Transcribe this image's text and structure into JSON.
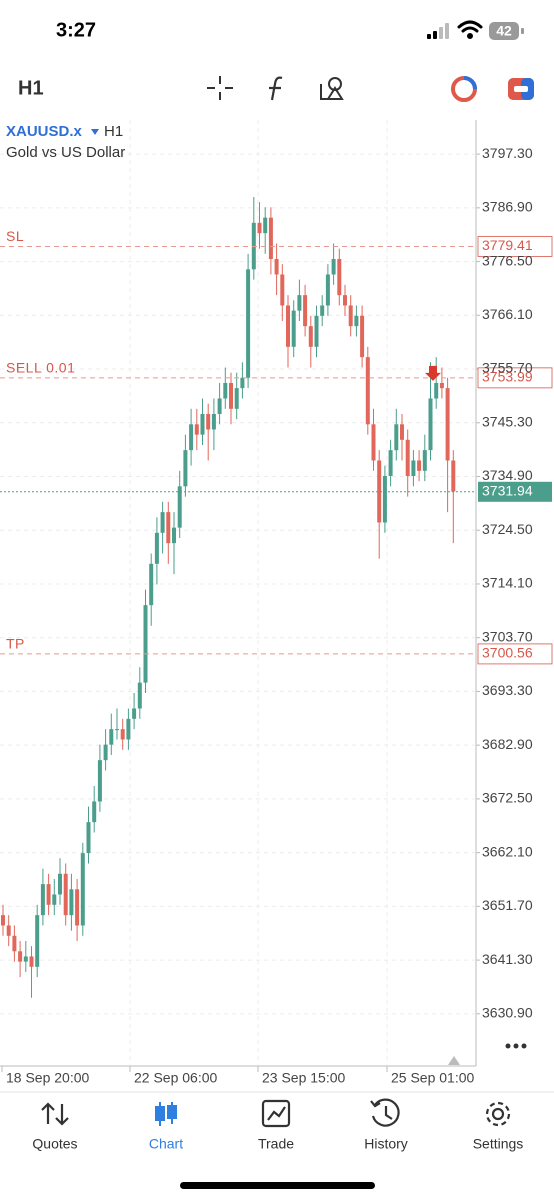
{
  "status_bar": {
    "time": "3:27",
    "battery": "42"
  },
  "toolbar": {
    "timeframe": "H1"
  },
  "chart": {
    "type": "candlestick",
    "symbol": "XAUUSD.x",
    "timeframe": "H1",
    "description": "Gold vs US Dollar",
    "up_color": "#4a9e8b",
    "down_color": "#e0675a",
    "ylim": [
      3620.8,
      3803.9
    ],
    "yticks": [
      {
        "value": 3797.3,
        "label": "3797.30"
      },
      {
        "value": 3786.9,
        "label": "3786.90"
      },
      {
        "value": 3776.5,
        "label": "3776.50"
      },
      {
        "value": 3766.1,
        "label": "3766.10"
      },
      {
        "value": 3755.7,
        "label": "3755.70"
      },
      {
        "value": 3745.3,
        "label": "3745.30"
      },
      {
        "value": 3734.9,
        "label": "3734.90"
      },
      {
        "value": 3724.5,
        "label": "3724.50"
      },
      {
        "value": 3714.1,
        "label": "3714.10"
      },
      {
        "value": 3703.7,
        "label": "3703.70"
      },
      {
        "value": 3693.3,
        "label": "3693.30"
      },
      {
        "value": 3682.9,
        "label": "3682.90"
      },
      {
        "value": 3672.5,
        "label": "3672.50"
      },
      {
        "value": 3662.1,
        "label": "3662.10"
      },
      {
        "value": 3651.7,
        "label": "3651.70"
      },
      {
        "value": 3641.3,
        "label": "3641.30"
      },
      {
        "value": 3630.9,
        "label": "3630.90"
      }
    ],
    "xticks": [
      "18 Sep 20:00",
      "22 Sep 06:00",
      "23 Sep 15:00",
      "25 Sep 01:00"
    ],
    "levels": [
      {
        "label": "SL",
        "value": 3779.41
      },
      {
        "label": "SELL 0.01",
        "value": 3753.99
      },
      {
        "label": "TP",
        "value": 3700.56
      }
    ],
    "last_price": 3731.94,
    "candles": [
      [
        3650,
        3652,
        3646,
        3648
      ],
      [
        3648,
        3650,
        3644,
        3646
      ],
      [
        3646,
        3648,
        3641,
        3643
      ],
      [
        3643,
        3645,
        3638,
        3641
      ],
      [
        3641,
        3645,
        3639,
        3642
      ],
      [
        3642,
        3644,
        3634,
        3640
      ],
      [
        3640,
        3652,
        3638,
        3650
      ],
      [
        3650,
        3659,
        3648,
        3656
      ],
      [
        3656,
        3658,
        3650,
        3652
      ],
      [
        3652,
        3657,
        3650,
        3654
      ],
      [
        3654,
        3661,
        3652,
        3658
      ],
      [
        3658,
        3660,
        3648,
        3650
      ],
      [
        3650,
        3658,
        3647,
        3655
      ],
      [
        3655,
        3657,
        3645,
        3648
      ],
      [
        3648,
        3664,
        3646,
        3662
      ],
      [
        3662,
        3671,
        3660,
        3668
      ],
      [
        3668,
        3675,
        3666,
        3672
      ],
      [
        3672,
        3683,
        3670,
        3680
      ],
      [
        3680,
        3686,
        3678,
        3683
      ],
      [
        3683,
        3689,
        3681,
        3686
      ],
      [
        3686,
        3690,
        3684,
        3686
      ],
      [
        3686,
        3688,
        3682,
        3684
      ],
      [
        3684,
        3690,
        3682,
        3688
      ],
      [
        3688,
        3693,
        3686,
        3690
      ],
      [
        3690,
        3698,
        3688,
        3695
      ],
      [
        3695,
        3713,
        3693,
        3710
      ],
      [
        3710,
        3720,
        3706,
        3718
      ],
      [
        3718,
        3727,
        3714,
        3724
      ],
      [
        3724,
        3730,
        3720,
        3728
      ],
      [
        3728,
        3730,
        3718,
        3722
      ],
      [
        3722,
        3728,
        3716,
        3725
      ],
      [
        3725,
        3736,
        3723,
        3733
      ],
      [
        3733,
        3743,
        3731,
        3740
      ],
      [
        3740,
        3748,
        3737,
        3745
      ],
      [
        3745,
        3748,
        3740,
        3743
      ],
      [
        3743,
        3750,
        3741,
        3747
      ],
      [
        3747,
        3749,
        3738,
        3744
      ],
      [
        3744,
        3750,
        3740,
        3747
      ],
      [
        3747,
        3753,
        3745,
        3750
      ],
      [
        3750,
        3756,
        3748,
        3753
      ],
      [
        3753,
        3755,
        3745,
        3748
      ],
      [
        3748,
        3755,
        3746,
        3752
      ],
      [
        3752,
        3757,
        3750,
        3754
      ],
      [
        3754,
        3778,
        3752,
        3775
      ],
      [
        3775,
        3789,
        3773,
        3784
      ],
      [
        3784,
        3788,
        3779,
        3782
      ],
      [
        3782,
        3787,
        3778,
        3785
      ],
      [
        3785,
        3787,
        3774,
        3777
      ],
      [
        3777,
        3780,
        3770,
        3774
      ],
      [
        3774,
        3776,
        3765,
        3768
      ],
      [
        3768,
        3770,
        3756,
        3760
      ],
      [
        3760,
        3769,
        3758,
        3767
      ],
      [
        3767,
        3773,
        3765,
        3770
      ],
      [
        3770,
        3772,
        3762,
        3764
      ],
      [
        3764,
        3766,
        3756,
        3760
      ],
      [
        3760,
        3768,
        3758,
        3766
      ],
      [
        3766,
        3770,
        3764,
        3768
      ],
      [
        3768,
        3776,
        3766,
        3774
      ],
      [
        3774,
        3780,
        3772,
        3777
      ],
      [
        3777,
        3779,
        3768,
        3770
      ],
      [
        3770,
        3772,
        3766,
        3768
      ],
      [
        3768,
        3770,
        3762,
        3764
      ],
      [
        3764,
        3768,
        3762,
        3766
      ],
      [
        3766,
        3768,
        3756,
        3758
      ],
      [
        3758,
        3760,
        3743,
        3745
      ],
      [
        3745,
        3748,
        3736,
        3738
      ],
      [
        3738,
        3740,
        3719,
        3726
      ],
      [
        3726,
        3737,
        3724,
        3735
      ],
      [
        3735,
        3742,
        3733,
        3740
      ],
      [
        3740,
        3748,
        3738,
        3745
      ],
      [
        3745,
        3747,
        3738,
        3742
      ],
      [
        3742,
        3744,
        3731,
        3735
      ],
      [
        3735,
        3740,
        3733,
        3738
      ],
      [
        3738,
        3740,
        3734,
        3736
      ],
      [
        3736,
        3743,
        3734,
        3740
      ],
      [
        3740,
        3757,
        3738,
        3750
      ],
      [
        3750,
        3758,
        3748,
        3753
      ],
      [
        3753,
        3756,
        3750,
        3752
      ],
      [
        3752,
        3754,
        3728,
        3738
      ],
      [
        3738,
        3740,
        3722,
        3732
      ]
    ]
  },
  "nav": {
    "tabs": [
      "Quotes",
      "Chart",
      "Trade",
      "History",
      "Settings"
    ],
    "active": 1
  }
}
